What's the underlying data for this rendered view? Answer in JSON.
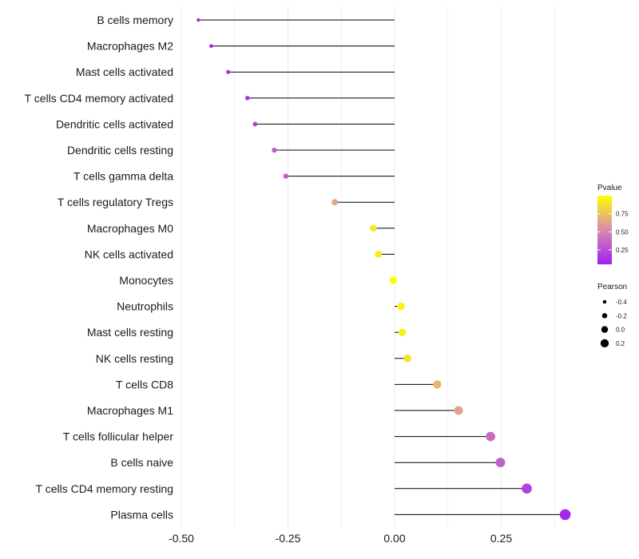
{
  "chart_data": {
    "type": "lollipop",
    "title": "",
    "xlabel": "",
    "ylabel": "",
    "xlim": [
      -0.5,
      0.4
    ],
    "x_ticks": [
      -0.5,
      -0.25,
      0.0,
      0.25
    ],
    "x_tick_labels": [
      "-0.50",
      "-0.25",
      "0.00",
      "0.25"
    ],
    "categories": [
      "B cells memory",
      "Macrophages M2",
      "Mast cells activated",
      "T cells CD4 memory activated",
      "Dendritic cells activated",
      "Dendritic cells resting",
      "T cells gamma delta",
      "T cells regulatory  Tregs ",
      "Macrophages M0",
      "NK cells activated",
      "Monocytes",
      "Neutrophils",
      "Mast cells resting",
      "NK cells resting",
      "T cells CD8",
      "Macrophages M1",
      "T cells follicular helper",
      "B cells naive",
      "T cells CD4 memory resting",
      "Plasma cells"
    ],
    "pearson": [
      -0.46,
      -0.43,
      -0.39,
      -0.345,
      -0.327,
      -0.282,
      -0.255,
      -0.14,
      -0.05,
      -0.038,
      -0.003,
      0.015,
      0.018,
      0.03,
      0.1,
      0.15,
      0.225,
      0.248,
      0.31,
      0.4
    ],
    "pvalue": [
      0.03,
      0.04,
      0.06,
      0.12,
      0.15,
      0.28,
      0.33,
      0.62,
      0.9,
      0.92,
      0.99,
      0.95,
      0.94,
      0.88,
      0.7,
      0.6,
      0.35,
      0.3,
      0.15,
      0.04
    ],
    "legend_pvalue": {
      "title": "Pvalue",
      "ticks": [
        0.25,
        0.5,
        0.75
      ],
      "tick_labels": [
        "0.25",
        "0.50",
        "0.75"
      ],
      "color_low": "#a020f0",
      "color_mid": "#d88ab0",
      "color_high": "#ffff00"
    },
    "legend_pearson": {
      "title": "Pearson",
      "ticks": [
        -0.4,
        -0.2,
        0.0,
        0.2
      ],
      "tick_labels": [
        "-0.4",
        "-0.2",
        "0.0",
        "0.2"
      ]
    },
    "colors": {
      "segment": "#000000",
      "grid": "#ebebeb"
    }
  }
}
